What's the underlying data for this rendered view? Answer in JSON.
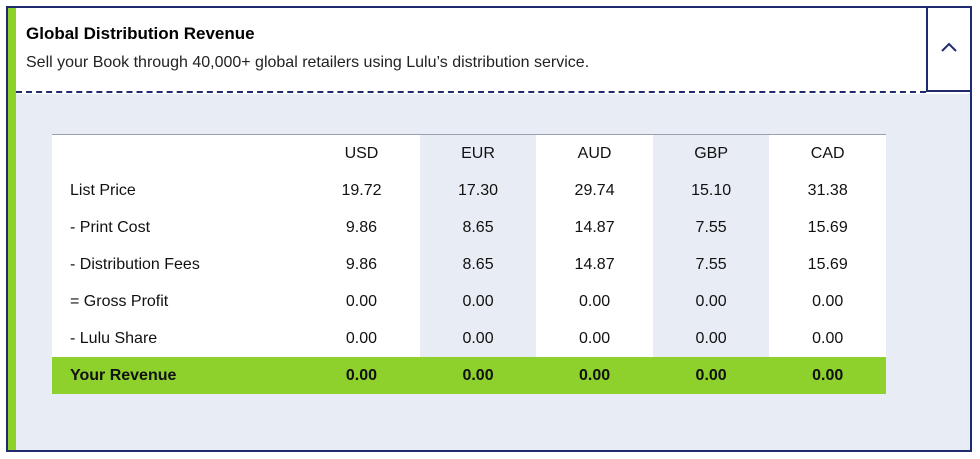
{
  "panel": {
    "title": "Global Distribution Revenue",
    "subtitle": "Sell your Book through 40,000+ global retailers using Lulu’s distribution service.",
    "toggle_icon": "chevron-up-icon",
    "colors": {
      "accent": "#8ed12d",
      "border": "#1f2b6e",
      "body_bg": "#e8ecf5"
    }
  },
  "table": {
    "currencies": [
      "USD",
      "EUR",
      "AUD",
      "GBP",
      "CAD"
    ],
    "rows": [
      {
        "label": "List Price",
        "values": [
          "19.72",
          "17.30",
          "29.74",
          "15.10",
          "31.38"
        ]
      },
      {
        "label": "- Print Cost",
        "values": [
          "9.86",
          "8.65",
          "14.87",
          "7.55",
          "15.69"
        ]
      },
      {
        "label": "- Distribution Fees",
        "values": [
          "9.86",
          "8.65",
          "14.87",
          "7.55",
          "15.69"
        ]
      },
      {
        "label": "= Gross Profit",
        "values": [
          "0.00",
          "0.00",
          "0.00",
          "0.00",
          "0.00"
        ]
      },
      {
        "label": "- Lulu Share",
        "values": [
          "0.00",
          "0.00",
          "0.00",
          "0.00",
          "0.00"
        ]
      },
      {
        "label": "Your Revenue",
        "values": [
          "0.00",
          "0.00",
          "0.00",
          "0.00",
          "0.00"
        ]
      }
    ]
  }
}
